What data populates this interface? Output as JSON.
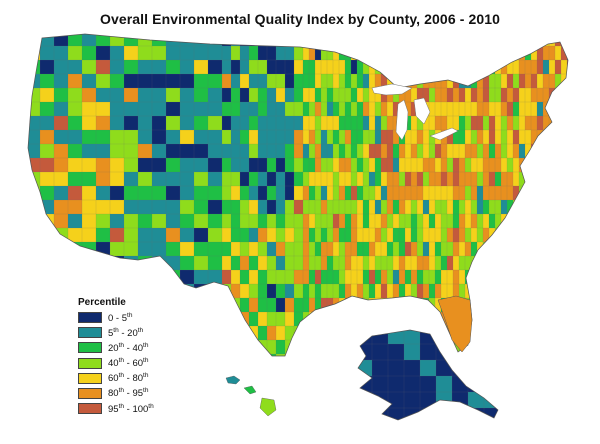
{
  "title": "Overall Environmental Quality Index by County, 2006 - 2010",
  "legend": {
    "title": "Percentile",
    "items": [
      {
        "html": "0 - 5<sup>th</sup>",
        "color": "#0f2a6e"
      },
      {
        "html": "5<sup>th</sup> - 20<sup>th</sup>",
        "color": "#1f8d96"
      },
      {
        "html": "20<sup>th</sup> - 40<sup>th</sup>",
        "color": "#1fbf45"
      },
      {
        "html": "40<sup>th</sup> - 60<sup>th</sup>",
        "color": "#8fdc1c"
      },
      {
        "html": "60<sup>th</sup> - 80<sup>th</sup>",
        "color": "#f5d11b"
      },
      {
        "html": "80<sup>th</sup> - 95<sup>th</sup>",
        "color": "#e8901f"
      },
      {
        "html": "95<sup>th</sup> - 100<sup>th</sup>",
        "color": "#c45a3c"
      }
    ]
  }
}
